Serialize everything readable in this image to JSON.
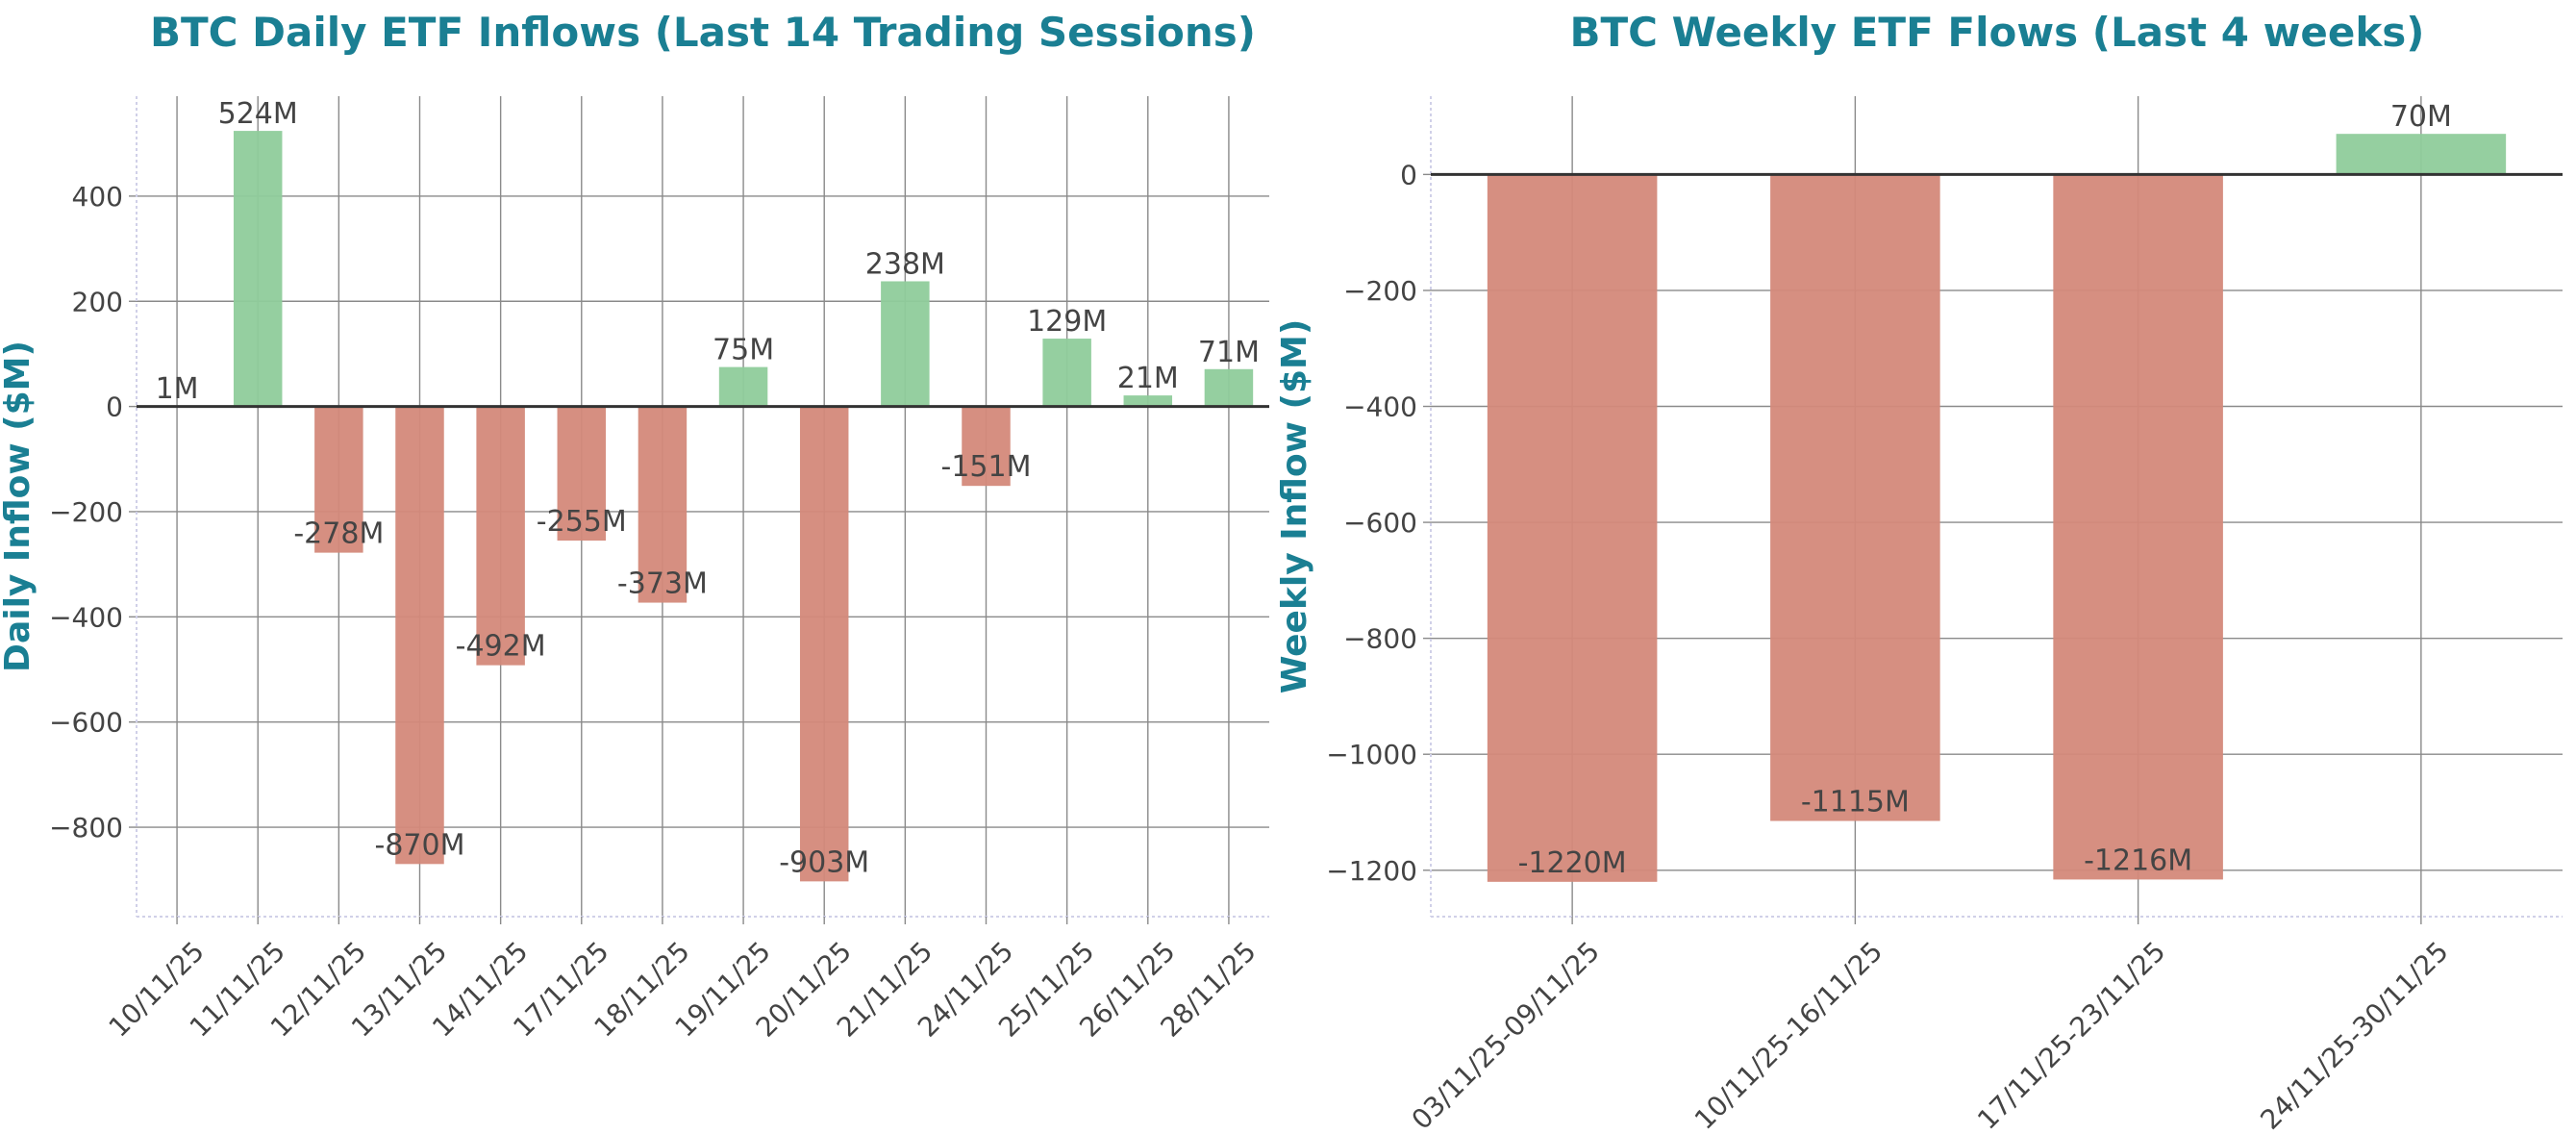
{
  "colors": {
    "positive": "#8fcc9b",
    "negative": "#d4897a",
    "title": "#1a7f93",
    "text": "#444444"
  },
  "chart_data": [
    {
      "type": "bar",
      "title": "BTC Daily ETF Inflows (Last 14 Trading Sessions)",
      "xlabel": "",
      "ylabel": "Daily Inflow ($M)",
      "ylim": [
        -970,
        590
      ],
      "yticks": [
        -800,
        -600,
        -400,
        -200,
        0,
        200,
        400
      ],
      "grid": true,
      "categories": [
        "10/11/25",
        "11/11/25",
        "12/11/25",
        "13/11/25",
        "14/11/25",
        "17/11/25",
        "18/11/25",
        "19/11/25",
        "20/11/25",
        "21/11/25",
        "24/11/25",
        "25/11/25",
        "26/11/25",
        "28/11/25"
      ],
      "values": [
        1,
        524,
        -278,
        -870,
        -492,
        -255,
        -373,
        75,
        -903,
        238,
        -151,
        129,
        21,
        71
      ],
      "data_labels": [
        "1M",
        "524M",
        "-278M",
        "-870M",
        "-492M",
        "-255M",
        "-373M",
        "75M",
        "-903M",
        "238M",
        "-151M",
        "129M",
        "21M",
        "71M"
      ]
    },
    {
      "type": "bar",
      "title": "BTC Weekly ETF Flows (Last 4 weeks)",
      "xlabel": "",
      "ylabel": "Weekly Inflow ($M)",
      "ylim": [
        -1280,
        135
      ],
      "yticks": [
        -1200,
        -1000,
        -800,
        -600,
        -400,
        -200,
        0
      ],
      "grid": true,
      "categories": [
        "03/11/25-09/11/25",
        "10/11/25-16/11/25",
        "17/11/25-23/11/25",
        "24/11/25-30/11/25"
      ],
      "values": [
        -1220,
        -1115,
        -1216,
        70
      ],
      "data_labels": [
        "-1220M",
        "-1115M",
        "-1216M",
        "70M"
      ]
    }
  ]
}
